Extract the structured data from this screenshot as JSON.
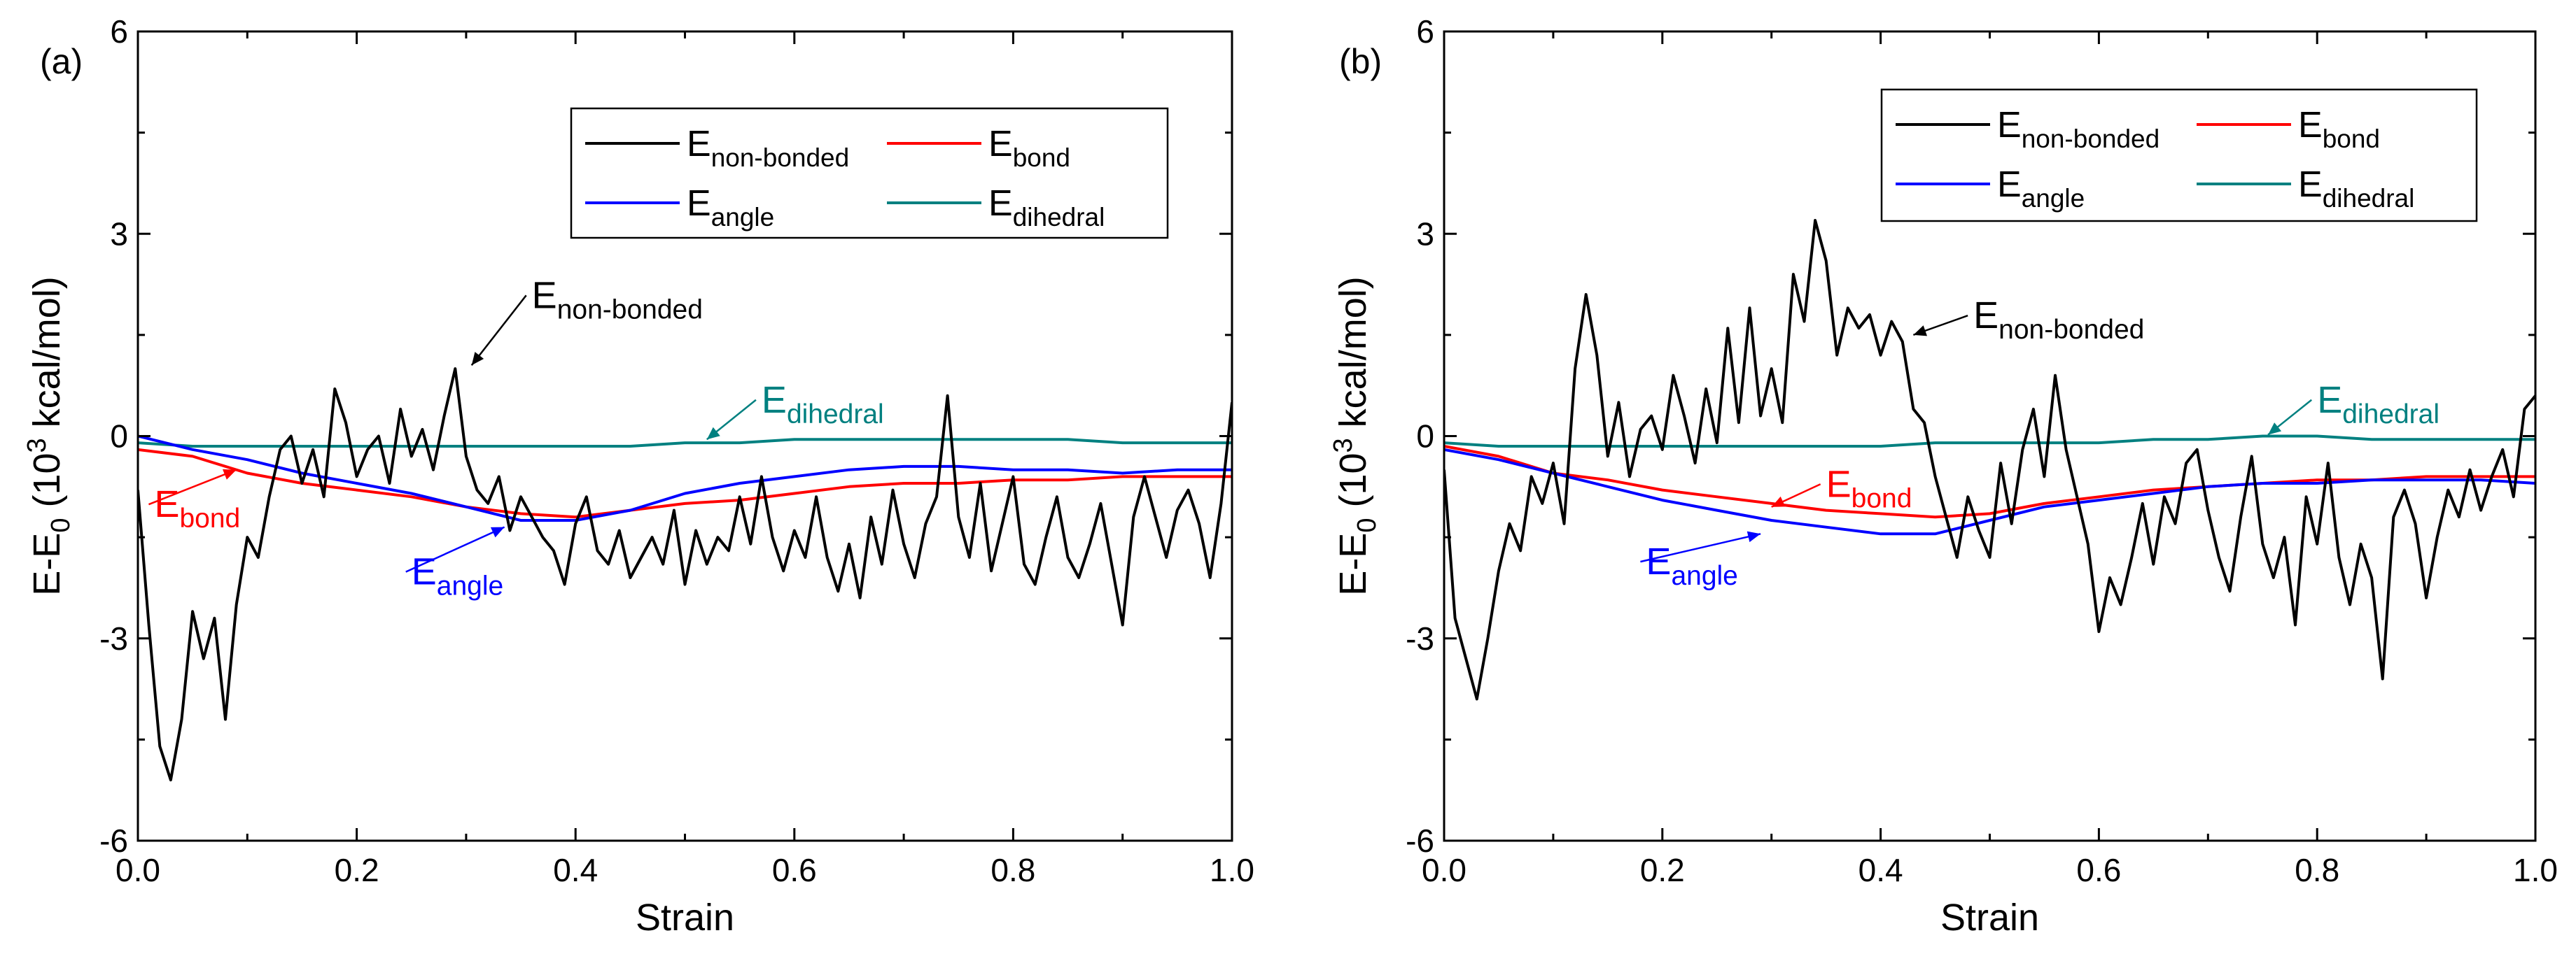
{
  "chart_data": [
    {
      "panel": "(a)",
      "type": "line",
      "xlabel": "Strain",
      "ylabel": {
        "base": "E-E",
        "sub": "0",
        "open": " (10",
        "sup": "3",
        "close": " kcal/mol)"
      },
      "xlim": [
        0.0,
        1.0
      ],
      "ylim": [
        -6,
        6
      ],
      "xticks": [
        0.0,
        0.2,
        0.4,
        0.6,
        0.8,
        1.0
      ],
      "xtick_labels": [
        "0.0",
        "0.2",
        "0.4",
        "0.6",
        "0.8",
        "1.0"
      ],
      "yticks": [
        -6,
        -3,
        0,
        3,
        6
      ],
      "ytick_labels": [
        "-6",
        "-3",
        "0",
        "3",
        "6"
      ],
      "grid": false,
      "legend": {
        "position": "top-right",
        "entries": [
          {
            "base": "E",
            "sub": "non-bonded",
            "color": "#000000"
          },
          {
            "base": "E",
            "sub": "bond",
            "color": "#ff0000"
          },
          {
            "base": "E",
            "sub": "angle",
            "color": "#0000ff"
          },
          {
            "base": "E",
            "sub": "dihedral",
            "color": "#008080"
          }
        ]
      },
      "annotations": [
        {
          "base": "E",
          "sub": "non-bonded",
          "color": "#000000",
          "x": 0.36,
          "y": 1.9,
          "point_x": 0.305,
          "point_y": 1.05
        },
        {
          "base": "E",
          "sub": "dihedral",
          "color": "#008080",
          "x": 0.57,
          "y": 0.35,
          "point_x": 0.52,
          "point_y": -0.05
        },
        {
          "base": "E",
          "sub": "bond",
          "color": "#ff0000",
          "x": 0.015,
          "y": -1.2,
          "point_x": 0.09,
          "point_y": -0.5
        },
        {
          "base": "E",
          "sub": "angle",
          "color": "#0000ff",
          "x": 0.25,
          "y": -2.2,
          "point_x": 0.335,
          "point_y": -1.35
        }
      ],
      "series": [
        {
          "name": "E non-bonded",
          "color": "#000000",
          "x": [
            0.0,
            0.01,
            0.02,
            0.03,
            0.04,
            0.05,
            0.06,
            0.07,
            0.08,
            0.09,
            0.1,
            0.11,
            0.12,
            0.13,
            0.14,
            0.15,
            0.16,
            0.17,
            0.18,
            0.19,
            0.2,
            0.21,
            0.22,
            0.23,
            0.24,
            0.25,
            0.26,
            0.27,
            0.28,
            0.29,
            0.3,
            0.31,
            0.32,
            0.33,
            0.34,
            0.35,
            0.36,
            0.37,
            0.38,
            0.39,
            0.4,
            0.41,
            0.42,
            0.43,
            0.44,
            0.45,
            0.46,
            0.47,
            0.48,
            0.49,
            0.5,
            0.51,
            0.52,
            0.53,
            0.54,
            0.55,
            0.56,
            0.57,
            0.58,
            0.59,
            0.6,
            0.61,
            0.62,
            0.63,
            0.64,
            0.65,
            0.66,
            0.67,
            0.68,
            0.69,
            0.7,
            0.71,
            0.72,
            0.73,
            0.74,
            0.75,
            0.76,
            0.77,
            0.78,
            0.79,
            0.8,
            0.81,
            0.82,
            0.83,
            0.84,
            0.85,
            0.86,
            0.87,
            0.88,
            0.89,
            0.9,
            0.91,
            0.92,
            0.93,
            0.94,
            0.95,
            0.96,
            0.97,
            0.98,
            0.99,
            1.0
          ],
          "y": [
            -0.8,
            -2.8,
            -4.6,
            -5.1,
            -4.2,
            -2.6,
            -3.3,
            -2.7,
            -4.2,
            -2.5,
            -1.5,
            -1.8,
            -0.9,
            -0.2,
            0.0,
            -0.7,
            -0.2,
            -0.9,
            0.7,
            0.2,
            -0.6,
            -0.2,
            0.0,
            -0.7,
            0.4,
            -0.3,
            0.1,
            -0.5,
            0.3,
            1.0,
            -0.3,
            -0.8,
            -1.0,
            -0.6,
            -1.4,
            -0.9,
            -1.2,
            -1.5,
            -1.7,
            -2.2,
            -1.3,
            -0.9,
            -1.7,
            -1.9,
            -1.4,
            -2.1,
            -1.8,
            -1.5,
            -1.9,
            -1.1,
            -2.2,
            -1.4,
            -1.9,
            -1.5,
            -1.7,
            -0.9,
            -1.6,
            -0.6,
            -1.5,
            -2.0,
            -1.4,
            -1.8,
            -0.9,
            -1.8,
            -2.3,
            -1.6,
            -2.4,
            -1.2,
            -1.9,
            -0.8,
            -1.6,
            -2.1,
            -1.3,
            -0.9,
            0.6,
            -1.2,
            -1.8,
            -0.7,
            -2.0,
            -1.3,
            -0.6,
            -1.9,
            -2.2,
            -1.5,
            -0.9,
            -1.8,
            -2.1,
            -1.6,
            -1.0,
            -1.9,
            -2.8,
            -1.2,
            -0.6,
            -1.2,
            -1.8,
            -1.1,
            -0.8,
            -1.3,
            -2.1,
            -1.0,
            0.5
          ]
        },
        {
          "name": "E bond",
          "color": "#ff0000",
          "x": [
            0.0,
            0.05,
            0.1,
            0.15,
            0.2,
            0.25,
            0.3,
            0.35,
            0.4,
            0.45,
            0.5,
            0.55,
            0.6,
            0.65,
            0.7,
            0.75,
            0.8,
            0.85,
            0.9,
            0.95,
            1.0
          ],
          "y": [
            -0.2,
            -0.3,
            -0.55,
            -0.7,
            -0.8,
            -0.9,
            -1.05,
            -1.15,
            -1.2,
            -1.1,
            -1.0,
            -0.95,
            -0.85,
            -0.75,
            -0.7,
            -0.7,
            -0.65,
            -0.65,
            -0.6,
            -0.6,
            -0.6
          ]
        },
        {
          "name": "E angle",
          "color": "#0000ff",
          "x": [
            0.0,
            0.05,
            0.1,
            0.15,
            0.2,
            0.25,
            0.3,
            0.35,
            0.4,
            0.45,
            0.5,
            0.55,
            0.6,
            0.65,
            0.7,
            0.75,
            0.8,
            0.85,
            0.9,
            0.95,
            1.0
          ],
          "y": [
            0.0,
            -0.2,
            -0.35,
            -0.55,
            -0.7,
            -0.85,
            -1.05,
            -1.25,
            -1.25,
            -1.1,
            -0.85,
            -0.7,
            -0.6,
            -0.5,
            -0.45,
            -0.45,
            -0.5,
            -0.5,
            -0.55,
            -0.5,
            -0.5
          ]
        },
        {
          "name": "E dihedral",
          "color": "#008080",
          "x": [
            0.0,
            0.05,
            0.1,
            0.15,
            0.2,
            0.25,
            0.3,
            0.35,
            0.4,
            0.45,
            0.5,
            0.55,
            0.6,
            0.65,
            0.7,
            0.75,
            0.8,
            0.85,
            0.9,
            0.95,
            1.0
          ],
          "y": [
            -0.1,
            -0.15,
            -0.15,
            -0.15,
            -0.15,
            -0.15,
            -0.15,
            -0.15,
            -0.15,
            -0.15,
            -0.1,
            -0.1,
            -0.05,
            -0.05,
            -0.05,
            -0.05,
            -0.05,
            -0.05,
            -0.1,
            -0.1,
            -0.1
          ]
        }
      ]
    },
    {
      "panel": "(b)",
      "type": "line",
      "xlabel": "Strain",
      "ylabel": {
        "base": "E-E",
        "sub": "0",
        "open": " (10",
        "sup": "3",
        "close": " kcal/mol)"
      },
      "xlim": [
        0.0,
        1.0
      ],
      "ylim": [
        -6,
        6
      ],
      "xticks": [
        0.0,
        0.2,
        0.4,
        0.6,
        0.8,
        1.0
      ],
      "xtick_labels": [
        "0.0",
        "0.2",
        "0.4",
        "0.6",
        "0.8",
        "1.0"
      ],
      "yticks": [
        -6,
        -3,
        0,
        3,
        6
      ],
      "ytick_labels": [
        "-6",
        "-3",
        "0",
        "3",
        "6"
      ],
      "grid": false,
      "legend": {
        "position": "top-right",
        "entries": [
          {
            "base": "E",
            "sub": "non-bonded",
            "color": "#000000"
          },
          {
            "base": "E",
            "sub": "bond",
            "color": "#ff0000"
          },
          {
            "base": "E",
            "sub": "angle",
            "color": "#0000ff"
          },
          {
            "base": "E",
            "sub": "dihedral",
            "color": "#008080"
          }
        ]
      },
      "annotations": [
        {
          "base": "E",
          "sub": "non-bonded",
          "color": "#000000",
          "x": 0.485,
          "y": 1.6,
          "point_x": 0.43,
          "point_y": 1.5
        },
        {
          "base": "E",
          "sub": "dihedral",
          "color": "#008080",
          "x": 0.8,
          "y": 0.35,
          "point_x": 0.755,
          "point_y": 0.02
        },
        {
          "base": "E",
          "sub": "bond",
          "color": "#ff0000",
          "x": 0.35,
          "y": -0.9,
          "point_x": 0.3,
          "point_y": -1.05
        },
        {
          "base": "E",
          "sub": "angle",
          "color": "#0000ff",
          "x": 0.185,
          "y": -2.05,
          "point_x": 0.29,
          "point_y": -1.45
        }
      ],
      "series": [
        {
          "name": "E non-bonded",
          "color": "#000000",
          "x": [
            0.0,
            0.01,
            0.02,
            0.03,
            0.04,
            0.05,
            0.06,
            0.07,
            0.08,
            0.09,
            0.1,
            0.11,
            0.12,
            0.13,
            0.14,
            0.15,
            0.16,
            0.17,
            0.18,
            0.19,
            0.2,
            0.21,
            0.22,
            0.23,
            0.24,
            0.25,
            0.26,
            0.27,
            0.28,
            0.29,
            0.3,
            0.31,
            0.32,
            0.33,
            0.34,
            0.35,
            0.36,
            0.37,
            0.38,
            0.39,
            0.4,
            0.41,
            0.42,
            0.43,
            0.44,
            0.45,
            0.46,
            0.47,
            0.48,
            0.49,
            0.5,
            0.51,
            0.52,
            0.53,
            0.54,
            0.55,
            0.56,
            0.57,
            0.58,
            0.59,
            0.6,
            0.61,
            0.62,
            0.63,
            0.64,
            0.65,
            0.66,
            0.67,
            0.68,
            0.69,
            0.7,
            0.71,
            0.72,
            0.73,
            0.74,
            0.75,
            0.76,
            0.77,
            0.78,
            0.79,
            0.8,
            0.81,
            0.82,
            0.83,
            0.84,
            0.85,
            0.86,
            0.87,
            0.88,
            0.89,
            0.9,
            0.91,
            0.92,
            0.93,
            0.94,
            0.95,
            0.96,
            0.97,
            0.98,
            0.99,
            1.0
          ],
          "y": [
            -0.5,
            -2.7,
            -3.3,
            -3.9,
            -3.0,
            -2.0,
            -1.3,
            -1.7,
            -0.6,
            -1.0,
            -0.4,
            -1.3,
            1.0,
            2.1,
            1.2,
            -0.3,
            0.5,
            -0.6,
            0.1,
            0.3,
            -0.2,
            0.9,
            0.3,
            -0.4,
            0.7,
            -0.1,
            1.6,
            0.2,
            1.9,
            0.3,
            1.0,
            0.2,
            2.4,
            1.7,
            3.2,
            2.6,
            1.2,
            1.9,
            1.6,
            1.8,
            1.2,
            1.7,
            1.4,
            0.4,
            0.2,
            -0.6,
            -1.2,
            -1.8,
            -0.9,
            -1.4,
            -1.8,
            -0.4,
            -1.3,
            -0.2,
            0.4,
            -0.6,
            0.9,
            -0.2,
            -0.9,
            -1.6,
            -2.9,
            -2.1,
            -2.5,
            -1.8,
            -1.0,
            -1.9,
            -0.9,
            -1.3,
            -0.4,
            -0.2,
            -1.1,
            -1.8,
            -2.3,
            -1.2,
            -0.3,
            -1.6,
            -2.1,
            -1.5,
            -2.8,
            -0.9,
            -1.6,
            -0.4,
            -1.8,
            -2.5,
            -1.6,
            -2.1,
            -3.6,
            -1.2,
            -0.8,
            -1.3,
            -2.4,
            -1.5,
            -0.8,
            -1.2,
            -0.5,
            -1.1,
            -0.6,
            -0.2,
            -0.9,
            0.4,
            0.6
          ]
        },
        {
          "name": "E bond",
          "color": "#ff0000",
          "x": [
            0.0,
            0.05,
            0.1,
            0.15,
            0.2,
            0.25,
            0.3,
            0.35,
            0.4,
            0.45,
            0.5,
            0.55,
            0.6,
            0.65,
            0.7,
            0.75,
            0.8,
            0.85,
            0.9,
            0.95,
            1.0
          ],
          "y": [
            -0.15,
            -0.3,
            -0.55,
            -0.65,
            -0.8,
            -0.9,
            -1.0,
            -1.1,
            -1.15,
            -1.2,
            -1.15,
            -1.0,
            -0.9,
            -0.8,
            -0.75,
            -0.7,
            -0.65,
            -0.65,
            -0.6,
            -0.6,
            -0.6
          ]
        },
        {
          "name": "E angle",
          "color": "#0000ff",
          "x": [
            0.0,
            0.05,
            0.1,
            0.15,
            0.2,
            0.25,
            0.3,
            0.35,
            0.4,
            0.45,
            0.5,
            0.55,
            0.6,
            0.65,
            0.7,
            0.75,
            0.8,
            0.85,
            0.9,
            0.95,
            1.0
          ],
          "y": [
            -0.2,
            -0.35,
            -0.55,
            -0.75,
            -0.95,
            -1.1,
            -1.25,
            -1.35,
            -1.45,
            -1.45,
            -1.25,
            -1.05,
            -0.95,
            -0.85,
            -0.75,
            -0.7,
            -0.7,
            -0.65,
            -0.65,
            -0.65,
            -0.7
          ]
        },
        {
          "name": "E dihedral",
          "color": "#008080",
          "x": [
            0.0,
            0.05,
            0.1,
            0.15,
            0.2,
            0.25,
            0.3,
            0.35,
            0.4,
            0.45,
            0.5,
            0.55,
            0.6,
            0.65,
            0.7,
            0.75,
            0.8,
            0.85,
            0.9,
            0.95,
            1.0
          ],
          "y": [
            -0.1,
            -0.15,
            -0.15,
            -0.15,
            -0.15,
            -0.15,
            -0.15,
            -0.15,
            -0.15,
            -0.1,
            -0.1,
            -0.1,
            -0.1,
            -0.05,
            -0.05,
            0.0,
            0.0,
            -0.05,
            -0.05,
            -0.05,
            -0.05
          ]
        }
      ]
    }
  ]
}
